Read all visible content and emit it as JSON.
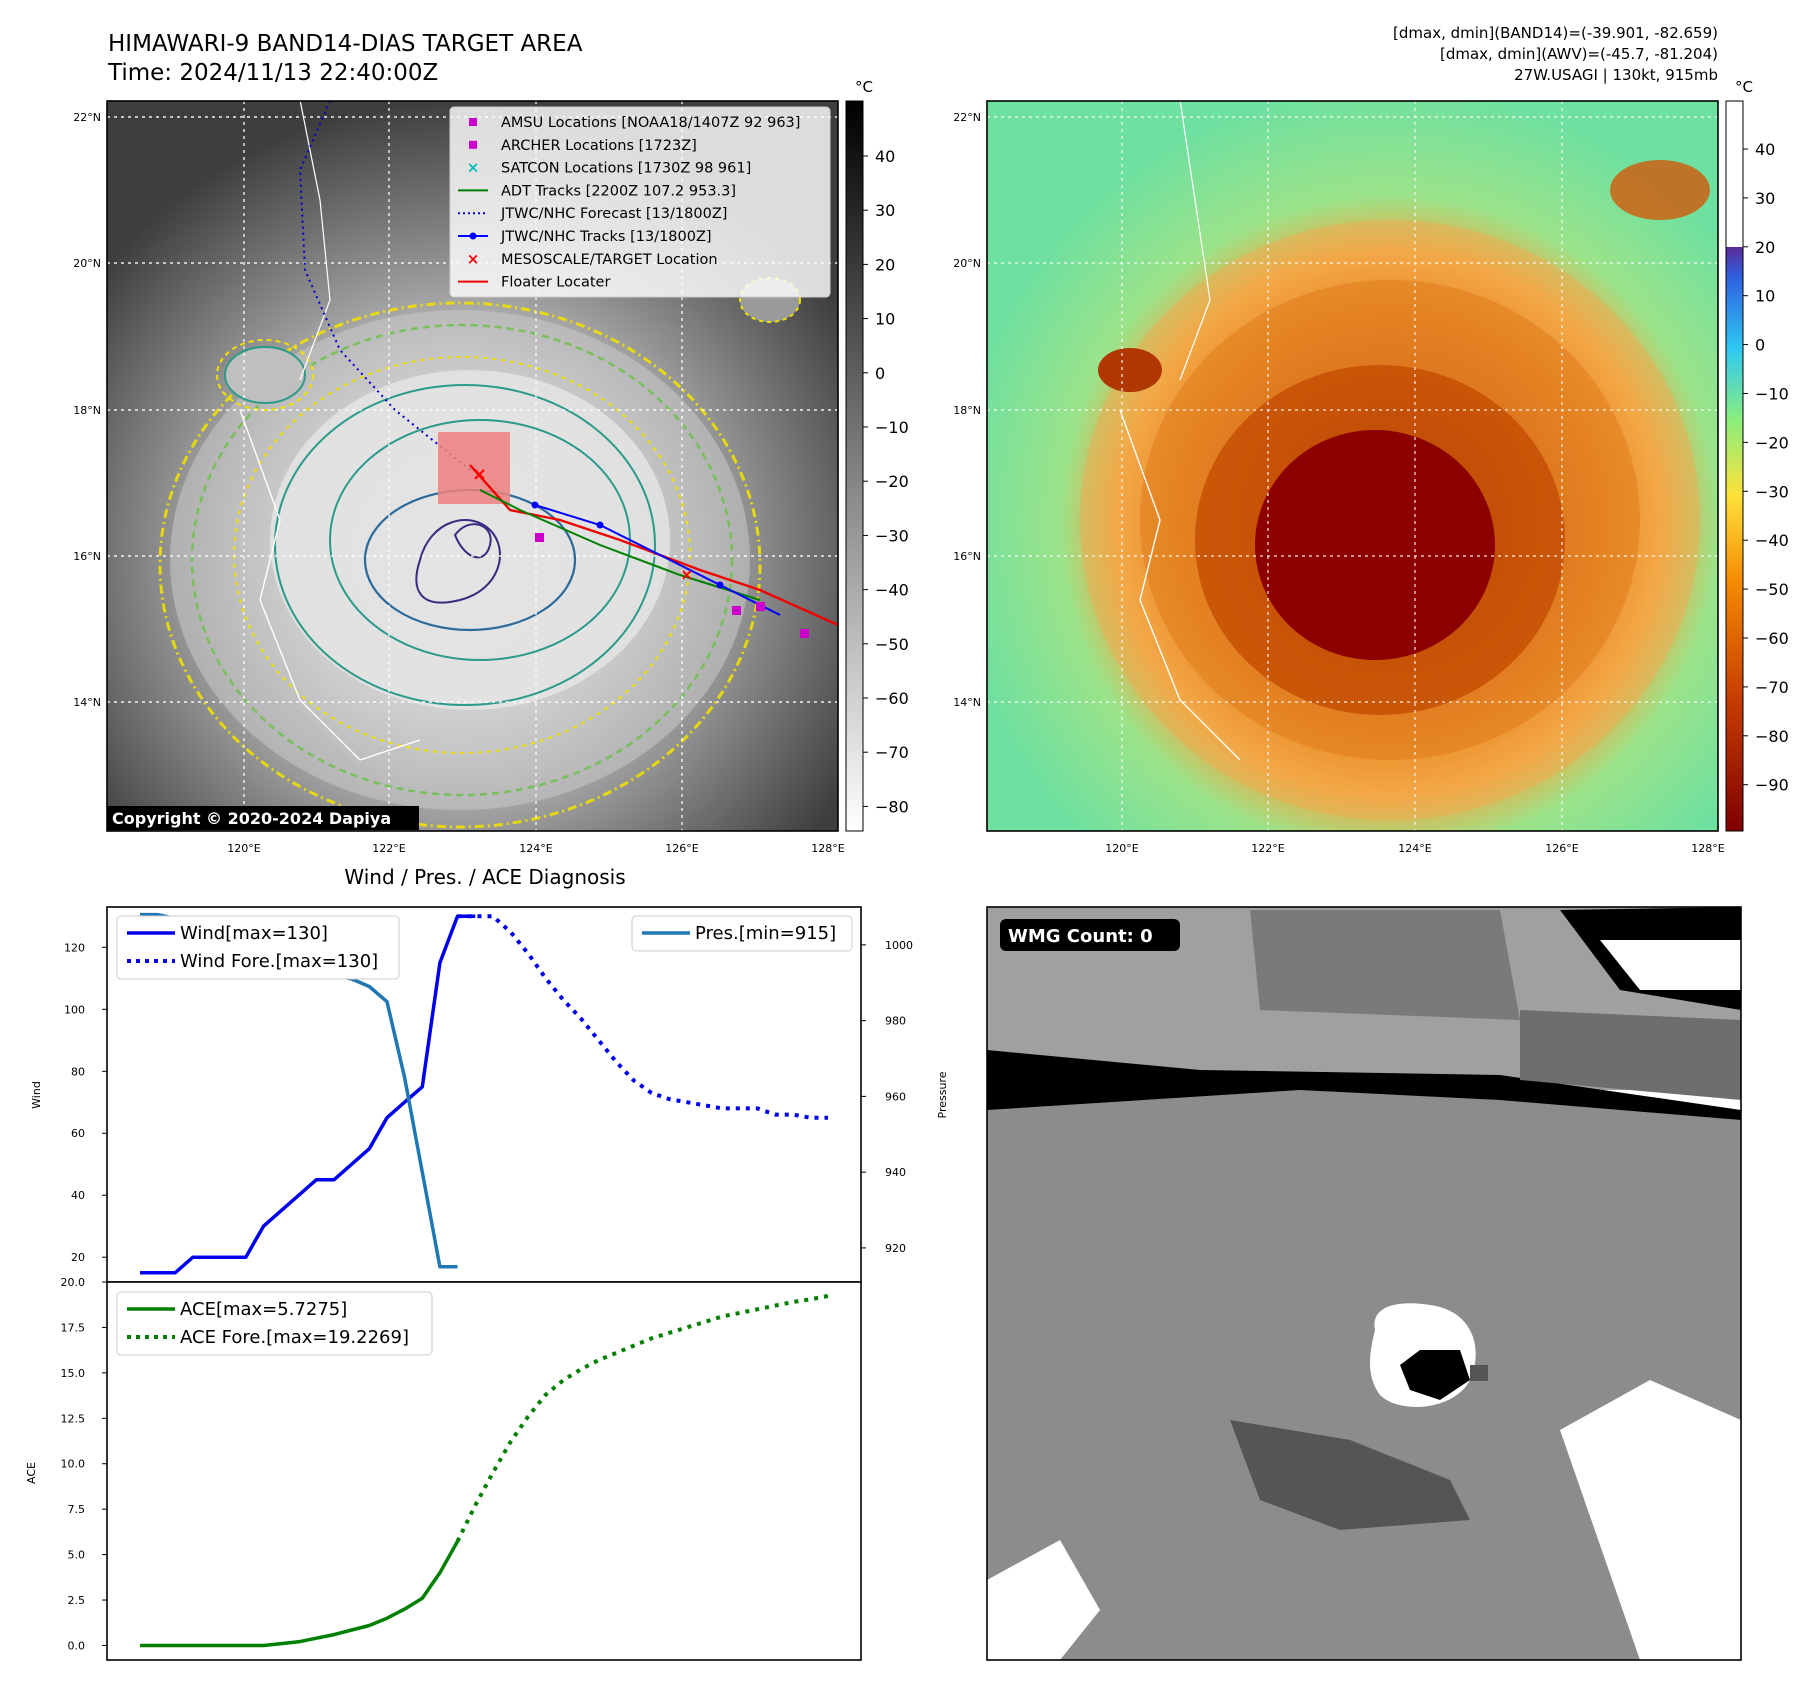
{
  "header": {
    "title_line1": "HIMAWARI-9 BAND14-DIAS TARGET AREA",
    "title_line2": "Time: 2024/11/13 22:40:00Z",
    "info_line1": "[dmax, dmin](BAND14)=(-39.901, -82.659)",
    "info_line2": "[dmax, dmin](AWV)=(-45.7, -81.204)",
    "info_line3": "27W.USAGI | 130kt, 915mb"
  },
  "colors": {
    "wind": "#0000ee",
    "pressure": "#1f77b4",
    "ace": "#008000",
    "track_red": "#ee0000",
    "amsu": "#cc00cc",
    "satcon": "#00bbbb",
    "adt": "#008000",
    "forecast": "#0000cc",
    "mesoscale": "#ff0000"
  },
  "maps": {
    "lat_labels": [
      "22°N",
      "20°N",
      "18°N",
      "16°N",
      "14°N"
    ],
    "lon_labels": [
      "120°E",
      "122°E",
      "124°E",
      "126°E",
      "128°E"
    ],
    "copyright": "Copyright © 2020-2024 Dapiya",
    "gray_colorbar": {
      "unit": "°C",
      "ticks": [
        "40",
        "30",
        "20",
        "10",
        "0",
        "−10",
        "−20",
        "−30",
        "−40",
        "−50",
        "−60",
        "−70",
        "−80"
      ]
    },
    "color_colorbar": {
      "unit": "°C",
      "ticks": [
        "40",
        "30",
        "20",
        "10",
        "0",
        "−10",
        "−20",
        "−30",
        "−40",
        "−50",
        "−60",
        "−70",
        "−80",
        "−90"
      ]
    },
    "legend": [
      {
        "label": "AMSU Locations [NOAA18/1407Z 92 963]",
        "marker": "square",
        "color": "#cc00cc"
      },
      {
        "label": "ARCHER Locations [1723Z]",
        "marker": "square",
        "color": "#cc00cc"
      },
      {
        "label": "SATCON Locations [1730Z 98 961]",
        "marker": "x",
        "color": "#00bbbb"
      },
      {
        "label": "ADT Tracks [2200Z 107.2 953.3]",
        "marker": "line",
        "color": "#008000"
      },
      {
        "label": "JTWC/NHC Forecast [13/1800Z]",
        "marker": "dotted",
        "color": "#0000cc"
      },
      {
        "label": "JTWC/NHC Tracks [13/1800Z]",
        "marker": "dotline",
        "color": "#0000ff"
      },
      {
        "label": "MESOSCALE/TARGET Location",
        "marker": "x",
        "color": "#ff0000"
      },
      {
        "label": "Floater Locater",
        "marker": "line",
        "color": "#ee0000"
      }
    ]
  },
  "wmg": {
    "count_label": "WMG Count: 0"
  },
  "chart_data": [
    {
      "type": "line",
      "title": "Wind / Pres. / ACE Diagnosis",
      "ylabel": "Wind",
      "ylabel_right": "Pressure",
      "ylim": [
        12,
        133
      ],
      "ylim_right": [
        911,
        1010
      ],
      "y_ticks": [
        20,
        40,
        60,
        80,
        100,
        120
      ],
      "y_ticks_right": [
        920,
        940,
        960,
        980,
        1000
      ],
      "series": [
        {
          "name": "Wind[max=130]",
          "style": "solid",
          "axis": "left",
          "x": [
            0,
            1,
            2,
            3,
            4,
            5,
            6,
            7,
            8,
            9,
            10,
            11,
            12,
            13,
            14,
            15,
            16,
            17,
            18,
            19
          ],
          "values": [
            15,
            15,
            15,
            20,
            20,
            20,
            20,
            30,
            35,
            40,
            45,
            45,
            50,
            55,
            65,
            70,
            75,
            115,
            130,
            130
          ]
        },
        {
          "name": "Wind Fore.[max=130]",
          "style": "dotted",
          "axis": "left",
          "x": [
            18,
            19,
            20,
            21,
            22,
            23,
            24,
            25,
            26,
            27,
            28,
            29,
            30,
            31,
            32,
            33,
            34,
            35,
            36,
            37,
            38,
            39
          ],
          "values": [
            130,
            130,
            130,
            125,
            118,
            110,
            103,
            97,
            90,
            83,
            77,
            73,
            71,
            70,
            69,
            68,
            68,
            68,
            66,
            66,
            65,
            65
          ]
        },
        {
          "name": "Pres.[min=915]",
          "style": "solid",
          "axis": "right",
          "x": [
            0,
            1,
            2,
            3,
            4,
            5,
            6,
            7,
            8,
            9,
            10,
            11,
            12,
            13,
            14,
            15,
            16,
            17,
            18
          ],
          "values": [
            1008,
            1008,
            1007,
            1007,
            1006,
            1004,
            1001,
            999,
            995,
            994,
            992,
            992,
            991,
            989,
            985,
            965,
            940,
            915,
            915
          ]
        }
      ]
    },
    {
      "type": "line",
      "ylabel": "ACE",
      "ylim": [
        -0.8,
        20
      ],
      "y_ticks": [
        0.0,
        2.5,
        5.0,
        7.5,
        10.0,
        12.5,
        15.0,
        17.5,
        20.0
      ],
      "series": [
        {
          "name": "ACE[max=5.7275]",
          "style": "solid",
          "x": [
            0,
            1,
            2,
            3,
            4,
            5,
            6,
            7,
            8,
            9,
            10,
            11,
            12,
            13,
            14,
            15,
            16,
            17,
            18
          ],
          "values": [
            0,
            0,
            0,
            0,
            0,
            0,
            0,
            0,
            0.1,
            0.2,
            0.4,
            0.6,
            0.85,
            1.1,
            1.5,
            2.0,
            2.6,
            4.0,
            5.7275
          ]
        },
        {
          "name": "ACE Fore.[max=19.2269]",
          "style": "dotted",
          "x": [
            18,
            19,
            20,
            21,
            22,
            23,
            24,
            25,
            26,
            27,
            28,
            29,
            30,
            31,
            32,
            33,
            34,
            35,
            36,
            37,
            38,
            39
          ],
          "values": [
            5.7275,
            7.7,
            9.5,
            11.2,
            12.6,
            13.8,
            14.6,
            15.2,
            15.7,
            16.1,
            16.5,
            16.9,
            17.2,
            17.5,
            17.8,
            18.1,
            18.3,
            18.5,
            18.7,
            18.9,
            19.05,
            19.2269
          ]
        }
      ]
    }
  ]
}
